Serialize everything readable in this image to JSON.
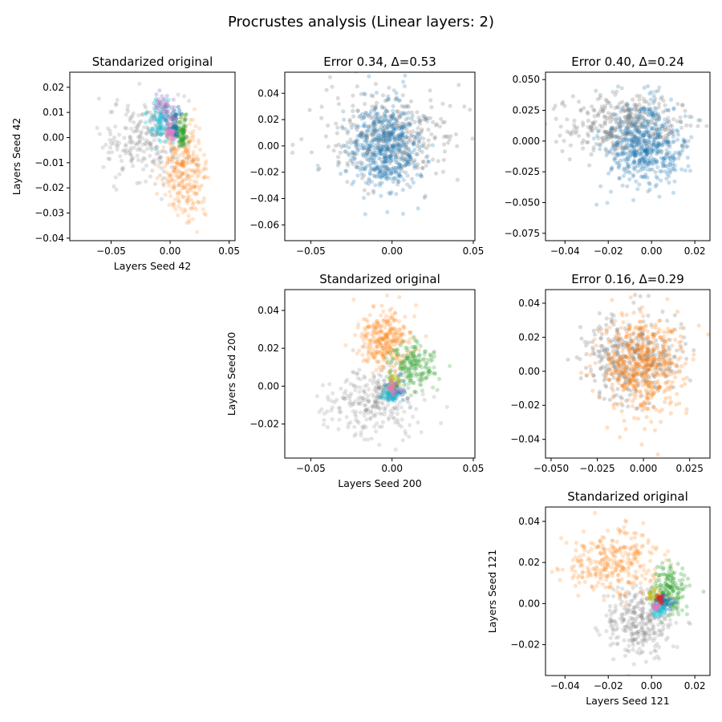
{
  "figure": {
    "title": "Procrustes analysis (Linear layers: 2)"
  },
  "colors": {
    "gray": "#7f7f7f",
    "blue": "#1f77b4",
    "orange": "#ff7f0e",
    "green": "#2ca02c",
    "cyan": "#17becf",
    "purple": "#9467bd",
    "pink": "#e377c2",
    "olive": "#bcbd22",
    "red": "#d62728",
    "brown": "#8c564b"
  },
  "chart_data": [
    {
      "id": "r0c0",
      "type": "scatter",
      "title": "Standarized original",
      "xlabel": "Layers Seed 42",
      "ylabel": "Layers Seed 42",
      "xlim": [
        -0.085,
        0.055
      ],
      "ylim": [
        -0.041,
        0.026
      ],
      "xticks": [
        -0.05,
        0.0,
        0.05
      ],
      "xtick_labels": [
        "−0.05",
        "0.00",
        "0.05"
      ],
      "yticks": [
        -0.04,
        -0.03,
        -0.02,
        -0.01,
        0.0,
        0.01,
        0.02
      ],
      "ytick_labels": [
        "−0.04",
        "−0.03",
        "−0.02",
        "−0.01",
        "0.00",
        "0.01",
        "0.02"
      ],
      "series": [
        {
          "color": "gray",
          "center": [
            -0.02,
            0.0
          ],
          "spread": [
            0.018,
            0.008
          ],
          "n": 260,
          "alpha": 0.22
        },
        {
          "color": "orange",
          "center": [
            0.012,
            -0.014
          ],
          "spread": [
            0.009,
            0.009
          ],
          "n": 280,
          "alpha": 0.2
        },
        {
          "color": "cyan",
          "center": [
            -0.008,
            0.006
          ],
          "spread": [
            0.005,
            0.004
          ],
          "n": 90,
          "alpha": 0.3
        },
        {
          "color": "purple",
          "center": [
            -0.005,
            0.012
          ],
          "spread": [
            0.004,
            0.003
          ],
          "n": 40,
          "alpha": 0.3
        },
        {
          "color": "green",
          "center": [
            0.01,
            0.002
          ],
          "spread": [
            0.003,
            0.003
          ],
          "n": 60,
          "alpha": 0.35
        },
        {
          "color": "blue",
          "center": [
            0.004,
            0.005
          ],
          "spread": [
            0.002,
            0.003
          ],
          "n": 40,
          "alpha": 0.4
        },
        {
          "color": "pink",
          "center": [
            0.0,
            0.003
          ],
          "spread": [
            0.002,
            0.002
          ],
          "n": 25,
          "alpha": 0.45
        }
      ]
    },
    {
      "id": "r0c1",
      "type": "scatter",
      "title": "Error 0.34, Δ=0.53",
      "xlabel": "",
      "ylabel": "",
      "xlim": [
        -0.066,
        0.051
      ],
      "ylim": [
        -0.072,
        0.056
      ],
      "xticks": [
        -0.05,
        0.0,
        0.05
      ],
      "xtick_labels": [
        "−0.05",
        "0.00",
        "0.05"
      ],
      "yticks": [
        -0.06,
        -0.04,
        -0.02,
        0.0,
        0.02,
        0.04
      ],
      "ytick_labels": [
        "−0.06",
        "−0.04",
        "−0.02",
        "0.00",
        "0.02",
        "0.04"
      ],
      "series": [
        {
          "color": "gray",
          "center": [
            0.0,
            0.008
          ],
          "spread": [
            0.02,
            0.018
          ],
          "n": 360,
          "alpha": 0.28
        },
        {
          "color": "blue",
          "center": [
            -0.004,
            0.0
          ],
          "spread": [
            0.011,
            0.017
          ],
          "n": 520,
          "alpha": 0.25
        }
      ]
    },
    {
      "id": "r0c2",
      "type": "scatter",
      "title": "Error 0.40, Δ=0.24",
      "xlabel": "",
      "ylabel": "",
      "xlim": [
        -0.049,
        0.027
      ],
      "ylim": [
        -0.081,
        0.056
      ],
      "xticks": [
        -0.04,
        -0.02,
        0.0,
        0.02
      ],
      "xtick_labels": [
        "−0.04",
        "−0.02",
        "0.00",
        "0.02"
      ],
      "yticks": [
        -0.075,
        -0.05,
        -0.025,
        0.0,
        0.025,
        0.05
      ],
      "ytick_labels": [
        "−0.075",
        "−0.050",
        "−0.025",
        "0.000",
        "0.025",
        "0.050"
      ],
      "series": [
        {
          "color": "gray",
          "center": [
            -0.012,
            0.012
          ],
          "spread": [
            0.014,
            0.012
          ],
          "n": 380,
          "alpha": 0.28
        },
        {
          "color": "blue",
          "center": [
            -0.003,
            -0.004
          ],
          "spread": [
            0.009,
            0.017
          ],
          "n": 520,
          "alpha": 0.25
        }
      ]
    },
    {
      "id": "r1c1",
      "type": "scatter",
      "title": "Standarized original",
      "xlabel": "Layers Seed 200",
      "ylabel": "Layers Seed 200",
      "xlim": [
        -0.066,
        0.051
      ],
      "ylim": [
        -0.038,
        0.051
      ],
      "xticks": [
        -0.05,
        0.0,
        0.05
      ],
      "xtick_labels": [
        "−0.05",
        "0.00",
        "0.05"
      ],
      "yticks": [
        -0.02,
        0.0,
        0.02,
        0.04
      ],
      "ytick_labels": [
        "−0.02",
        "0.00",
        "0.02",
        "0.04"
      ],
      "series": [
        {
          "color": "gray",
          "center": [
            -0.012,
            -0.008
          ],
          "spread": [
            0.014,
            0.009
          ],
          "n": 280,
          "alpha": 0.2
        },
        {
          "color": "orange",
          "center": [
            -0.005,
            0.024
          ],
          "spread": [
            0.008,
            0.008
          ],
          "n": 300,
          "alpha": 0.22
        },
        {
          "color": "green",
          "center": [
            0.014,
            0.01
          ],
          "spread": [
            0.007,
            0.006
          ],
          "n": 180,
          "alpha": 0.25
        },
        {
          "color": "blue",
          "center": [
            0.002,
            -0.002
          ],
          "spread": [
            0.003,
            0.003
          ],
          "n": 60,
          "alpha": 0.35
        },
        {
          "color": "cyan",
          "center": [
            -0.001,
            -0.004
          ],
          "spread": [
            0.003,
            0.002
          ],
          "n": 50,
          "alpha": 0.35
        },
        {
          "color": "olive",
          "center": [
            0.001,
            0.002
          ],
          "spread": [
            0.002,
            0.002
          ],
          "n": 30,
          "alpha": 0.4
        },
        {
          "color": "pink",
          "center": [
            0.0,
            0.0
          ],
          "spread": [
            0.002,
            0.002
          ],
          "n": 20,
          "alpha": 0.45
        }
      ]
    },
    {
      "id": "r1c2",
      "type": "scatter",
      "title": "Error 0.16, Δ=0.29",
      "xlabel": "",
      "ylabel": "",
      "xlim": [
        -0.053,
        0.036
      ],
      "ylim": [
        -0.051,
        0.048
      ],
      "xticks": [
        -0.05,
        -0.025,
        0.0,
        0.025
      ],
      "xtick_labels": [
        "−0.050",
        "−0.025",
        "0.000",
        "0.025"
      ],
      "yticks": [
        -0.04,
        -0.02,
        0.0,
        0.02,
        0.04
      ],
      "ytick_labels": [
        "−0.04",
        "−0.02",
        "0.00",
        "0.02",
        "0.04"
      ],
      "series": [
        {
          "color": "gray",
          "center": [
            -0.006,
            0.008
          ],
          "spread": [
            0.013,
            0.012
          ],
          "n": 380,
          "alpha": 0.28
        },
        {
          "color": "orange",
          "center": [
            0.0,
            0.004
          ],
          "spread": [
            0.011,
            0.014
          ],
          "n": 520,
          "alpha": 0.25
        }
      ]
    },
    {
      "id": "r2c2",
      "type": "scatter",
      "title": "Standarized original",
      "xlabel": "Layers Seed 121",
      "ylabel": "Layers Seed 121",
      "xlim": [
        -0.049,
        0.027
      ],
      "ylim": [
        -0.035,
        0.047
      ],
      "xticks": [
        -0.04,
        -0.02,
        0.0,
        0.02
      ],
      "xtick_labels": [
        "−0.04",
        "−0.02",
        "0.00",
        "0.02"
      ],
      "yticks": [
        -0.02,
        0.0,
        0.02,
        0.04
      ],
      "ytick_labels": [
        "−0.02",
        "0.00",
        "0.02",
        "0.04"
      ],
      "series": [
        {
          "color": "gray",
          "center": [
            -0.006,
            -0.008
          ],
          "spread": [
            0.008,
            0.009
          ],
          "n": 300,
          "alpha": 0.22
        },
        {
          "color": "orange",
          "center": [
            -0.018,
            0.02
          ],
          "spread": [
            0.011,
            0.008
          ],
          "n": 300,
          "alpha": 0.22
        },
        {
          "color": "green",
          "center": [
            0.009,
            0.007
          ],
          "spread": [
            0.004,
            0.006
          ],
          "n": 150,
          "alpha": 0.28
        },
        {
          "color": "olive",
          "center": [
            0.001,
            0.004
          ],
          "spread": [
            0.002,
            0.002
          ],
          "n": 30,
          "alpha": 0.4
        },
        {
          "color": "blue",
          "center": [
            0.006,
            0.001
          ],
          "spread": [
            0.002,
            0.002
          ],
          "n": 40,
          "alpha": 0.4
        },
        {
          "color": "cyan",
          "center": [
            0.003,
            -0.003
          ],
          "spread": [
            0.002,
            0.002
          ],
          "n": 40,
          "alpha": 0.4
        },
        {
          "color": "red",
          "center": [
            0.004,
            0.002
          ],
          "spread": [
            0.001,
            0.001
          ],
          "n": 15,
          "alpha": 0.5
        },
        {
          "color": "pink",
          "center": [
            0.002,
            -0.002
          ],
          "spread": [
            0.001,
            0.001
          ],
          "n": 15,
          "alpha": 0.5
        }
      ]
    }
  ]
}
